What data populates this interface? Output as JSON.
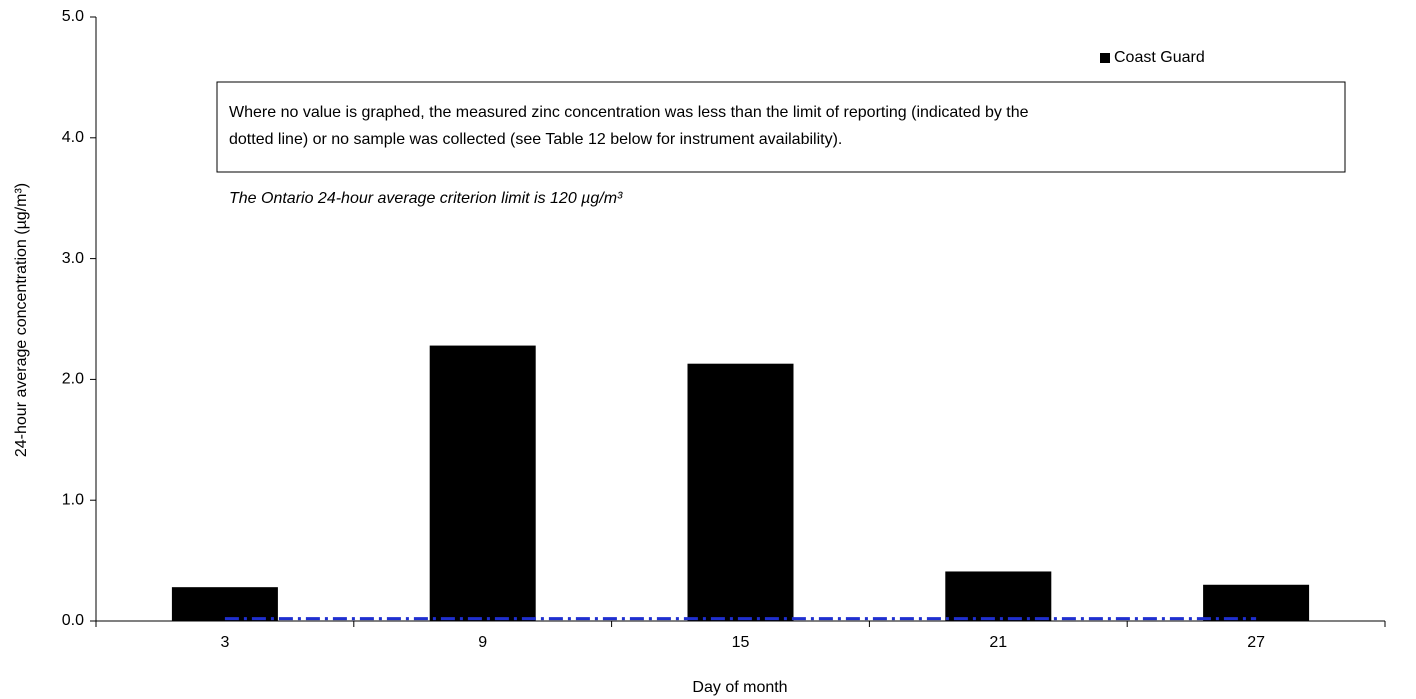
{
  "chart_data": {
    "type": "bar",
    "x_label": "Day of month",
    "y_label": "24-hour average concentration (µg/m³)",
    "categories": [
      "3",
      "9",
      "15",
      "21",
      "27"
    ],
    "series": [
      {
        "name": "Coast Guard",
        "color": "#000000",
        "values": [
          0.28,
          2.28,
          2.13,
          0.41,
          0.3
        ]
      }
    ],
    "ylim": [
      0,
      5
    ],
    "yticks": [
      {
        "value": 0,
        "label": "0.0"
      },
      {
        "value": 1,
        "label": "1.0"
      },
      {
        "value": 2,
        "label": "2.0"
      },
      {
        "value": 3,
        "label": "3.0"
      },
      {
        "value": 4,
        "label": "4.0"
      },
      {
        "value": 5,
        "label": "5.0"
      }
    ],
    "reference_line": {
      "value": 0.02,
      "color": "#1f2fd0"
    },
    "annotation_lines": [
      "Where no value is graphed, the measured zinc concentration was less than the limit of reporting (indicated by the",
      "dotted line) or no sample was collected (see Table 12 below for instrument availability)."
    ],
    "note": "The Ontario 24-hour average criterion limit is 120 µg/m³",
    "legend": "top-right",
    "grid": false
  }
}
